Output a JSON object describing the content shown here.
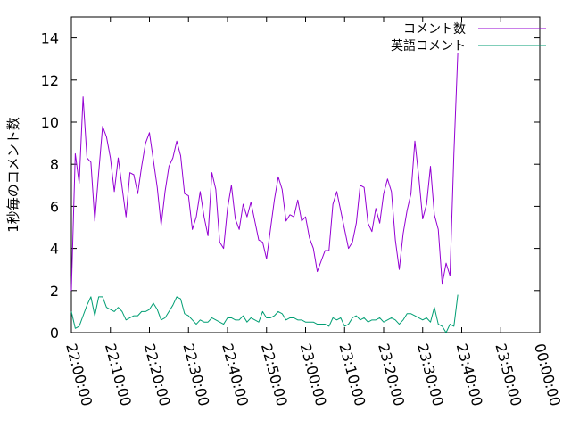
{
  "chart_data": {
    "type": "line",
    "title": "",
    "xlabel": "",
    "ylabel": "1秒毎のコメント数",
    "xlim": [
      "22:00:00",
      "00:00:00"
    ],
    "ylim": [
      0,
      15
    ],
    "x_ticks": [
      "22:00:00",
      "22:10:00",
      "22:20:00",
      "22:30:00",
      "22:40:00",
      "22:50:00",
      "23:00:00",
      "23:10:00",
      "23:20:00",
      "23:30:00",
      "23:40:00",
      "23:50:00",
      "00:00:00"
    ],
    "y_ticks": [
      0,
      2,
      4,
      6,
      8,
      10,
      12,
      14
    ],
    "grid": false,
    "legend": "top-right",
    "x_step_minutes": 1,
    "series": [
      {
        "name": "コメント数",
        "color": "#9400d3",
        "values": [
          2.0,
          8.5,
          7.1,
          11.2,
          8.3,
          8.1,
          5.3,
          7.6,
          9.8,
          9.3,
          8.3,
          6.7,
          8.3,
          6.9,
          5.5,
          7.6,
          7.5,
          6.6,
          7.9,
          9.0,
          9.5,
          8.2,
          6.9,
          5.1,
          6.7,
          7.9,
          8.3,
          9.1,
          8.4,
          6.6,
          6.5,
          4.9,
          5.5,
          6.7,
          5.5,
          4.6,
          7.6,
          6.8,
          4.3,
          4.0,
          5.9,
          7.0,
          5.4,
          4.9,
          6.1,
          5.5,
          6.2,
          5.3,
          4.4,
          4.3,
          3.5,
          4.9,
          6.3,
          7.4,
          6.8,
          5.3,
          5.6,
          5.5,
          6.3,
          5.3,
          5.5,
          4.5,
          4.0,
          2.9,
          3.4,
          3.9,
          3.9,
          6.1,
          6.7,
          5.8,
          4.9,
          4.0,
          4.3,
          5.2,
          7.0,
          6.9,
          5.2,
          4.8,
          5.9,
          5.2,
          6.6,
          7.3,
          6.7,
          4.4,
          3.0,
          4.7,
          5.8,
          6.6,
          9.1,
          7.4,
          5.4,
          6.1,
          7.9,
          5.6,
          4.9,
          2.3,
          3.3,
          2.7,
          8.5,
          13.3
        ]
      },
      {
        "name": "英語コメント",
        "color": "#009e73",
        "values": [
          1.0,
          0.2,
          0.3,
          0.8,
          1.3,
          1.7,
          0.8,
          1.7,
          1.7,
          1.2,
          1.1,
          1.0,
          1.2,
          1.0,
          0.6,
          0.7,
          0.8,
          0.8,
          1.0,
          1.0,
          1.1,
          1.4,
          1.1,
          0.6,
          0.7,
          1.0,
          1.3,
          1.7,
          1.6,
          0.9,
          0.8,
          0.6,
          0.4,
          0.6,
          0.5,
          0.5,
          0.7,
          0.6,
          0.5,
          0.4,
          0.7,
          0.7,
          0.6,
          0.6,
          0.8,
          0.5,
          0.7,
          0.6,
          0.5,
          1.0,
          0.7,
          0.7,
          0.8,
          1.0,
          0.9,
          0.6,
          0.7,
          0.7,
          0.6,
          0.6,
          0.5,
          0.5,
          0.5,
          0.4,
          0.4,
          0.4,
          0.3,
          0.7,
          0.6,
          0.7,
          0.3,
          0.4,
          0.7,
          0.8,
          0.6,
          0.7,
          0.5,
          0.6,
          0.6,
          0.7,
          0.5,
          0.6,
          0.7,
          0.6,
          0.4,
          0.6,
          0.9,
          0.9,
          0.8,
          0.7,
          0.6,
          0.7,
          0.5,
          1.2,
          0.4,
          0.3,
          0.0,
          0.4,
          0.3,
          1.8
        ]
      }
    ]
  }
}
